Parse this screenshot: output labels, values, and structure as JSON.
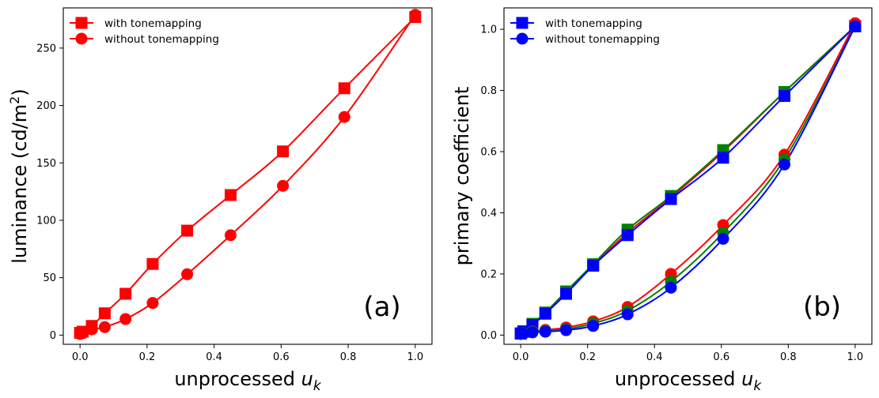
{
  "chart_data": [
    {
      "type": "line",
      "panel_label": "(a)",
      "xlabel": "unprocessed",
      "xlabel_sym": "u",
      "xlabel_sub": "k",
      "ylabel": "luminance (cd/m",
      "ylabel_sup": "2",
      "ylabel_end": ")",
      "xlim": [
        -0.05,
        1.05
      ],
      "ylim": [
        -8,
        285
      ],
      "xticks": [
        0.0,
        0.2,
        0.4,
        0.6,
        0.8,
        1.0
      ],
      "xtick_labels": [
        "0.0",
        "0.2",
        "0.4",
        "0.6",
        "0.8",
        "1.0"
      ],
      "yticks": [
        0,
        50,
        100,
        150,
        200,
        250
      ],
      "ytick_labels": [
        "0",
        "50",
        "100",
        "150",
        "200",
        "250"
      ],
      "legend": {
        "position": "top-left",
        "entries": [
          "with tonemapping",
          "without tonemapping"
        ]
      },
      "series": [
        {
          "name": "with tonemapping",
          "marker": "square",
          "color": "#ff0000",
          "x": [
            0.0,
            0.0078,
            0.0351,
            0.0737,
            0.1357,
            0.2166,
            0.3196,
            0.4492,
            0.6053,
            0.7886,
            1.0
          ],
          "y": [
            2,
            3,
            8,
            19,
            36,
            62,
            91,
            122,
            160,
            215,
            277
          ]
        },
        {
          "name": "without tonemapping",
          "marker": "circle",
          "color": "#ff0000",
          "x": [
            0.0,
            0.0078,
            0.0351,
            0.0737,
            0.1357,
            0.2166,
            0.3196,
            0.4492,
            0.6053,
            0.7886,
            1.0
          ],
          "y": [
            1,
            2,
            5,
            7,
            14,
            28,
            53,
            87,
            130,
            190,
            279
          ]
        }
      ]
    },
    {
      "type": "line",
      "panel_label": "(b)",
      "xlabel": "unprocessed",
      "xlabel_sym": "u",
      "xlabel_sub": "k",
      "ylabel": "primary coefficient",
      "xlim": [
        -0.05,
        1.05
      ],
      "ylim": [
        -0.03,
        1.07
      ],
      "xticks": [
        0.0,
        0.2,
        0.4,
        0.6,
        0.8,
        1.0
      ],
      "xtick_labels": [
        "0.0",
        "0.2",
        "0.4",
        "0.6",
        "0.8",
        "1.0"
      ],
      "yticks": [
        0.0,
        0.2,
        0.4,
        0.6,
        0.8,
        1.0
      ],
      "ytick_labels": [
        "0.0",
        "0.2",
        "0.4",
        "0.6",
        "0.8",
        "1.0"
      ],
      "legend": {
        "position": "top-left",
        "entries": [
          "with tonemapping",
          "without tonemapping"
        ],
        "color": "#0000ff"
      },
      "series": [
        {
          "name": "with tonemapping (red)",
          "marker": "square",
          "color": "#ff0000",
          "x": [
            0.0,
            0.0078,
            0.0351,
            0.0737,
            0.1357,
            0.2166,
            0.3196,
            0.4492,
            0.6053,
            0.7886,
            1.0
          ],
          "y": [
            0.005,
            0.012,
            0.035,
            0.072,
            0.14,
            0.228,
            0.335,
            0.45,
            0.6,
            0.795,
            1.01
          ]
        },
        {
          "name": "with tonemapping (green)",
          "marker": "square",
          "color": "#008000",
          "x": [
            0.0,
            0.0078,
            0.0351,
            0.0737,
            0.1357,
            0.2166,
            0.3196,
            0.4492,
            0.6053,
            0.7886,
            1.0
          ],
          "y": [
            0.006,
            0.013,
            0.037,
            0.074,
            0.143,
            0.232,
            0.345,
            0.455,
            0.605,
            0.795,
            1.01
          ]
        },
        {
          "name": "with tonemapping",
          "marker": "square",
          "color": "#0000ff",
          "x": [
            0.0,
            0.0078,
            0.0351,
            0.0737,
            0.1357,
            0.2166,
            0.3196,
            0.4492,
            0.6053,
            0.7886,
            1.0
          ],
          "y": [
            0.005,
            0.011,
            0.033,
            0.07,
            0.135,
            0.227,
            0.327,
            0.445,
            0.58,
            0.782,
            1.01
          ]
        },
        {
          "name": "without tonemapping (red)",
          "marker": "circle",
          "color": "#ff0000",
          "x": [
            0.0,
            0.0078,
            0.0351,
            0.0737,
            0.1357,
            0.2166,
            0.3196,
            0.4492,
            0.6053,
            0.7886,
            1.0
          ],
          "y": [
            0.004,
            0.006,
            0.012,
            0.017,
            0.025,
            0.045,
            0.092,
            0.2,
            0.36,
            0.59,
            1.02
          ]
        },
        {
          "name": "without tonemapping (green)",
          "marker": "circle",
          "color": "#008000",
          "x": [
            0.0,
            0.0078,
            0.0351,
            0.0737,
            0.1357,
            0.2166,
            0.3196,
            0.4492,
            0.6053,
            0.7886,
            1.0
          ],
          "y": [
            0.004,
            0.006,
            0.011,
            0.014,
            0.02,
            0.038,
            0.08,
            0.175,
            0.335,
            0.575,
            1.01
          ]
        },
        {
          "name": "without tonemapping",
          "marker": "circle",
          "color": "#0000ff",
          "x": [
            0.0,
            0.0078,
            0.0351,
            0.0737,
            0.1357,
            0.2166,
            0.3196,
            0.4492,
            0.6053,
            0.7886,
            1.0
          ],
          "y": [
            0.004,
            0.005,
            0.009,
            0.011,
            0.016,
            0.03,
            0.068,
            0.155,
            0.315,
            0.558,
            1.01
          ]
        }
      ]
    }
  ]
}
